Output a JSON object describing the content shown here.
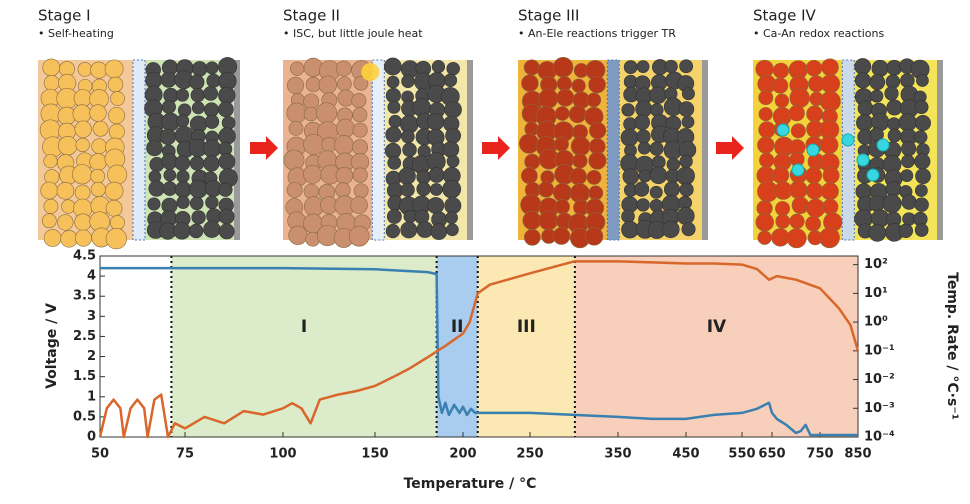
{
  "illustration": {
    "panels": [
      {
        "title": "Stage I",
        "note": "• Self-heating"
      },
      {
        "title": "Stage II",
        "note": "• ISC, but little joule heat"
      },
      {
        "title": "Stage III",
        "note": "• An-Ele reactions trigger TR"
      },
      {
        "title": "Stage IV",
        "note": "• Ca-An redox reactions"
      }
    ]
  },
  "chart_data": {
    "type": "line",
    "xlabel": "Temperature / °C",
    "ylabel": "Voltage / V",
    "y2label": "Temp. Rate / °C·s⁻¹",
    "xlim": [
      50,
      850
    ],
    "xticks": [
      50,
      75,
      100,
      150,
      200,
      250,
      350,
      450,
      550,
      650,
      750,
      850
    ],
    "ylim": [
      0,
      4.5
    ],
    "yticks": [
      0,
      0.5,
      1,
      1.5,
      2,
      2.5,
      3,
      3.5,
      4,
      4.5
    ],
    "y2lim": [
      0.0001,
      200
    ],
    "y2log": true,
    "y2ticks": [
      {
        "value": 0.0001,
        "label": "10⁻⁴"
      },
      {
        "value": 0.001,
        "label": "10⁻³"
      },
      {
        "value": 0.01,
        "label": "10⁻²"
      },
      {
        "value": 0.1,
        "label": "10⁻¹"
      },
      {
        "value": 1,
        "label": "10⁰"
      },
      {
        "value": 10,
        "label": "10¹"
      },
      {
        "value": 100,
        "label": "10²"
      }
    ],
    "stages": [
      {
        "label": "I",
        "start": 71,
        "end": 185,
        "color": "#dcebc9"
      },
      {
        "label": "II",
        "start": 185,
        "end": 211,
        "color": "#a9cdef"
      },
      {
        "label": "III",
        "start": 211,
        "end": 301,
        "color": "#fbe8b3"
      },
      {
        "label": "IV",
        "start": 301,
        "end": 850,
        "color": "#f7cfba"
      }
    ],
    "series": [
      {
        "color": "#3a80b0",
        "axis": "y",
        "x": [
          50,
          60,
          70,
          100,
          150,
          180,
          185,
          186,
          188,
          190,
          192,
          195,
          198,
          200,
          203,
          206,
          209,
          211,
          215,
          250,
          300,
          350,
          400,
          450,
          500,
          550,
          600,
          640,
          650,
          660,
          680,
          700,
          710,
          720,
          730,
          750,
          800,
          850
        ],
        "values": [
          4.2,
          4.2,
          4.2,
          4.2,
          4.17,
          4.1,
          4.05,
          1.0,
          0.6,
          0.85,
          0.55,
          0.8,
          0.6,
          0.75,
          0.55,
          0.7,
          0.6,
          0.6,
          0.6,
          0.6,
          0.55,
          0.5,
          0.45,
          0.45,
          0.55,
          0.6,
          0.7,
          0.85,
          0.6,
          0.45,
          0.3,
          0.1,
          0.15,
          0.3,
          0.05,
          0.05,
          0.05,
          0.05
        ]
      },
      {
        "color": "#d9662a",
        "axis": "y2",
        "x": [
          50,
          52,
          54,
          56,
          57,
          59,
          61,
          63,
          64,
          66,
          68,
          70,
          72,
          75,
          80,
          85,
          90,
          95,
          100,
          105,
          110,
          115,
          120,
          130,
          140,
          150,
          160,
          170,
          180,
          190,
          200,
          205,
          211,
          220,
          250,
          300,
          350,
          400,
          450,
          500,
          550,
          600,
          640,
          660,
          700,
          750,
          800,
          830,
          850
        ],
        "values": [
          0.0001,
          0.001,
          0.002,
          0.001,
          0.0001,
          0.001,
          0.002,
          0.001,
          0.0001,
          0.002,
          0.003,
          0.0001,
          0.0003,
          0.0002,
          0.0005,
          0.0003,
          0.0008,
          0.0006,
          0.001,
          0.0015,
          0.001,
          0.0003,
          0.002,
          0.003,
          0.004,
          0.006,
          0.012,
          0.025,
          0.06,
          0.15,
          0.4,
          1,
          10,
          20,
          50,
          130,
          130,
          120,
          110,
          110,
          100,
          70,
          30,
          40,
          30,
          15,
          3,
          0.8,
          0.1
        ]
      }
    ]
  }
}
